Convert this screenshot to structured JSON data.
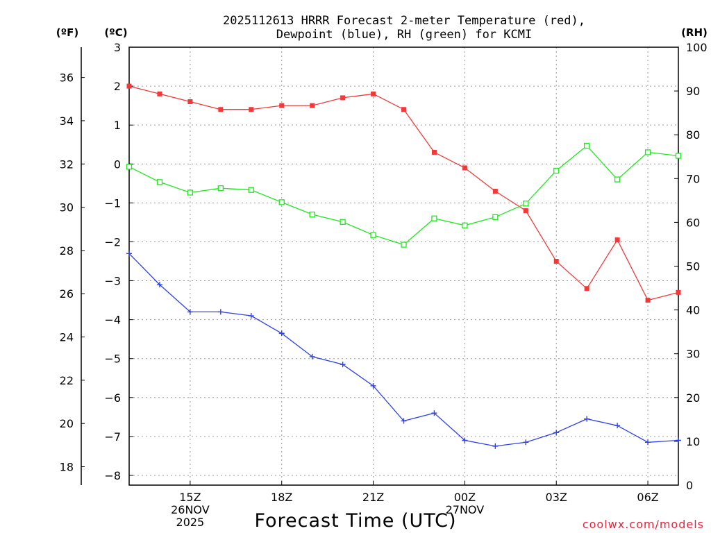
{
  "chart_data": {
    "type": "line",
    "title_line1": "2025112613 HRRR Forecast 2-meter Temperature (red),",
    "title_line2": "Dewpoint (blue), RH (green) for KCMI",
    "xlabel": "Forecast Time (UTC)",
    "credit": "coolwx.com/models",
    "units": {
      "fahrenheit": "(ºF)",
      "celsius": "(ºC)",
      "rh": "(RH)"
    },
    "x_hours": [
      13,
      14,
      15,
      16,
      17,
      18,
      19,
      20,
      21,
      22,
      23,
      24,
      25,
      26,
      27,
      28,
      29,
      30,
      31
    ],
    "x_ticks": [
      {
        "hour": 15,
        "lines": [
          "15Z",
          "26NOV",
          "2025"
        ]
      },
      {
        "hour": 18,
        "lines": [
          "18Z"
        ]
      },
      {
        "hour": 21,
        "lines": [
          "21Z"
        ]
      },
      {
        "hour": 24,
        "lines": [
          "00Z",
          "27NOV"
        ]
      },
      {
        "hour": 27,
        "lines": [
          "03Z"
        ]
      },
      {
        "hour": 30,
        "lines": [
          "06Z"
        ]
      }
    ],
    "celsius_axis": {
      "range": [
        -8.25,
        3
      ],
      "ticks": [
        3,
        2,
        1,
        0,
        -1,
        -2,
        -3,
        -4,
        -5,
        -6,
        -7,
        -8
      ]
    },
    "fahrenheit_axis": {
      "ticks": [
        36,
        34,
        32,
        30,
        28,
        26,
        24,
        22,
        20,
        18
      ]
    },
    "rh_axis": {
      "range": [
        0,
        100
      ],
      "ticks": [
        100,
        90,
        80,
        70,
        60,
        50,
        40,
        30,
        20,
        10,
        0
      ]
    },
    "series": [
      {
        "name": "Temperature",
        "units": "C",
        "color": "#f03a3a",
        "marker": "filled-square",
        "values": [
          2.0,
          1.8,
          1.6,
          1.4,
          1.4,
          1.5,
          1.5,
          1.7,
          1.8,
          1.4,
          0.3,
          -0.1,
          -0.7,
          -1.2,
          -2.5,
          -3.2,
          -1.95,
          -3.5,
          -3.3
        ]
      },
      {
        "name": "Dewpoint",
        "units": "C",
        "color": "#2d3ff0",
        "marker": "plus",
        "values": [
          -2.3,
          -3.1,
          -3.8,
          -3.8,
          -3.9,
          -4.35,
          -4.95,
          -5.15,
          -5.7,
          -6.6,
          -6.4,
          -7.1,
          -7.25,
          -7.15,
          -6.9,
          -6.55,
          -6.72,
          -7.15,
          -7.1
        ]
      },
      {
        "name": "RH",
        "units": "%",
        "color": "#1ee81e",
        "marker": "open-square",
        "values": [
          72.7,
          69.2,
          66.8,
          67.8,
          67.4,
          64.6,
          61.8,
          60.1,
          57.1,
          54.9,
          60.9,
          59.3,
          61.2,
          64.3,
          71.8,
          77.5,
          69.8,
          76.0,
          75.2
        ]
      }
    ]
  }
}
